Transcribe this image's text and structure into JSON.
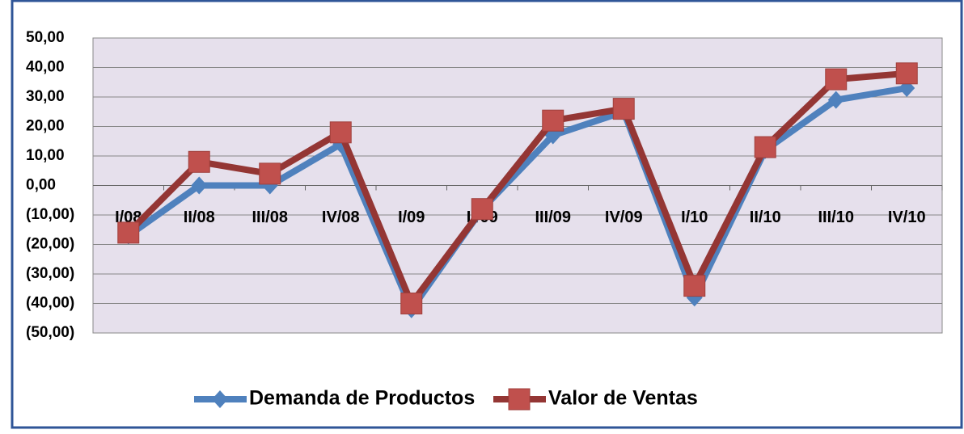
{
  "chart_data": {
    "type": "line",
    "categories": [
      "I/08",
      "II/08",
      "III/08",
      "IV/08",
      "I/09",
      "II/09",
      "III/09",
      "IV/09",
      "I/10",
      "II/10",
      "III/10",
      "IV/10"
    ],
    "series": [
      {
        "name": "Demanda de Productos",
        "color": "#4f81bd",
        "values": [
          -17,
          0,
          0,
          14,
          -42,
          -8,
          17,
          25,
          -38,
          12,
          29,
          33
        ]
      },
      {
        "name": "Valor de Ventas",
        "color": "#c0504d",
        "values": [
          -16,
          8,
          4,
          18,
          -40,
          -8,
          22,
          26,
          -34,
          13,
          36,
          38
        ]
      }
    ],
    "ylim": [
      -50,
      50
    ],
    "yticks": [
      {
        "value": 50,
        "label": "50,00"
      },
      {
        "value": 40,
        "label": "40,00"
      },
      {
        "value": 30,
        "label": "30,00"
      },
      {
        "value": 20,
        "label": "20,00"
      },
      {
        "value": 10,
        "label": "10,00"
      },
      {
        "value": 0,
        "label": "0,00"
      },
      {
        "value": -10,
        "label": "(10,00)"
      },
      {
        "value": -20,
        "label": "(20,00)"
      },
      {
        "value": -30,
        "label": "(30,00)"
      },
      {
        "value": -40,
        "label": "(40,00)"
      },
      {
        "value": -50,
        "label": "(50,00)"
      }
    ],
    "grid": true,
    "legend": "bottom"
  }
}
